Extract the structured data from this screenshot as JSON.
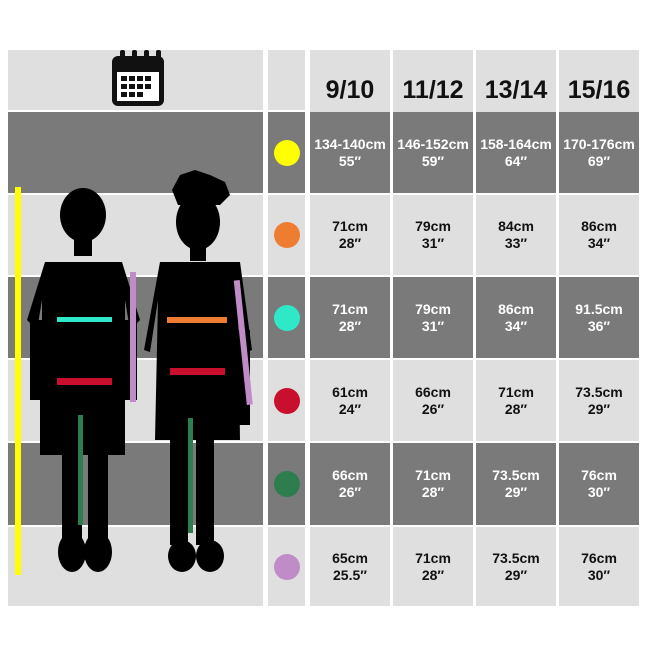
{
  "header": {
    "icon": "calendar-icon",
    "sizes": [
      "9/10",
      "11/12",
      "13/14",
      "15/16"
    ]
  },
  "rows": [
    {
      "measure_color": "#ffff00",
      "values": [
        [
          "134-140cm",
          "55″"
        ],
        [
          "146-152cm",
          "59″"
        ],
        [
          "158-164cm",
          "64″"
        ],
        [
          "170-176cm",
          "69″"
        ]
      ]
    },
    {
      "measure_color": "#ee7d31",
      "values": [
        [
          "71cm",
          "28″"
        ],
        [
          "79cm",
          "31″"
        ],
        [
          "84cm",
          "33″"
        ],
        [
          "86cm",
          "34″"
        ]
      ]
    },
    {
      "measure_color": "#2ee8c8",
      "values": [
        [
          "71cm",
          "28″"
        ],
        [
          "79cm",
          "31″"
        ],
        [
          "86cm",
          "34″"
        ],
        [
          "91.5cm",
          "36″"
        ]
      ]
    },
    {
      "measure_color": "#c8102e",
      "values": [
        [
          "61cm",
          "24″"
        ],
        [
          "66cm",
          "26″"
        ],
        [
          "71cm",
          "28″"
        ],
        [
          "73.5cm",
          "29″"
        ]
      ]
    },
    {
      "measure_color": "#2e7d4f",
      "values": [
        [
          "66cm",
          "26″"
        ],
        [
          "71cm",
          "28″"
        ],
        [
          "73.5cm",
          "29″"
        ],
        [
          "76cm",
          "30″"
        ]
      ]
    },
    {
      "measure_color": "#c08cc8",
      "values": [
        [
          "65cm",
          "25.5″"
        ],
        [
          "71cm",
          "28″"
        ],
        [
          "73.5cm",
          "29″"
        ],
        [
          "76cm",
          "30″"
        ]
      ]
    }
  ]
}
